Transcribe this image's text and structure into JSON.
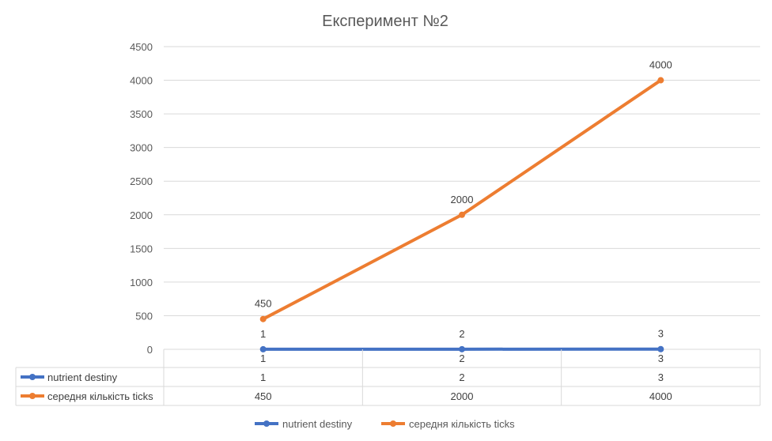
{
  "chart_data": {
    "type": "line",
    "title": "Експеримент №2",
    "categories": [
      "1",
      "2",
      "3"
    ],
    "ylim": [
      0,
      4500
    ],
    "yticks": [
      0,
      500,
      1000,
      1500,
      2000,
      2500,
      3000,
      3500,
      4000,
      4500
    ],
    "grid": true,
    "legend_position": "bottom",
    "data_table": true,
    "series": [
      {
        "name": "nutrient destiny",
        "values": [
          1,
          2,
          3
        ],
        "color": "#4472c4"
      },
      {
        "name": "середня кількість ticks",
        "values": [
          450,
          2000,
          4000
        ],
        "color": "#ed7d31"
      }
    ]
  }
}
